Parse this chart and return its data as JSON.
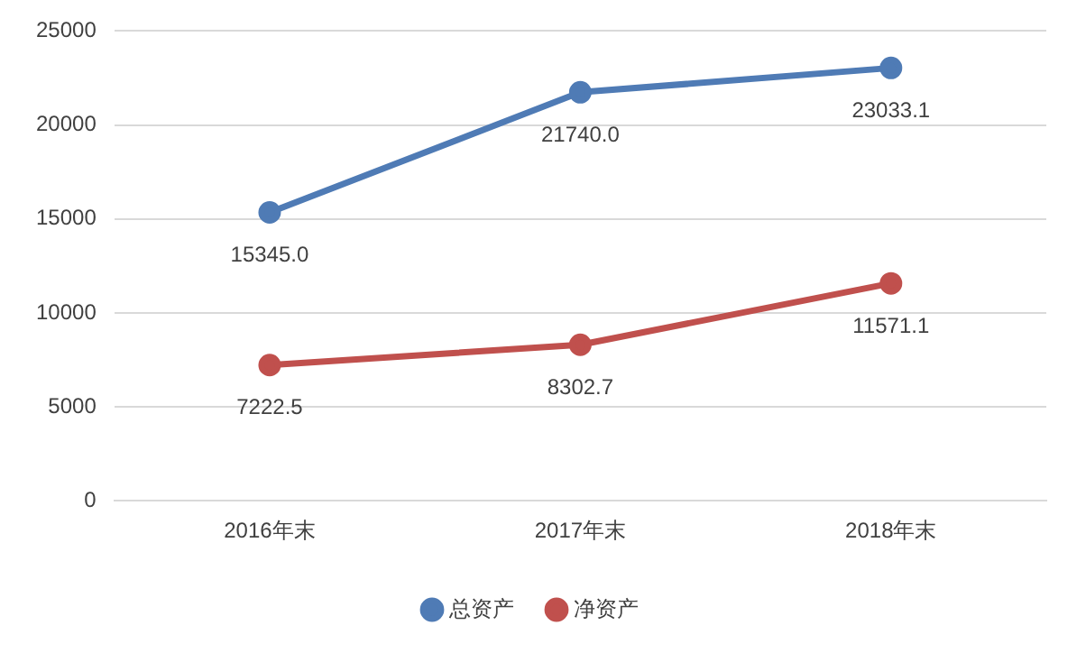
{
  "chart_data": {
    "type": "line",
    "categories": [
      "2016年末",
      "2017年末",
      "2018年末"
    ],
    "series": [
      {
        "name": "总资产",
        "color": "#4f7bb5",
        "values": [
          15345.0,
          21740.0,
          23033.1
        ],
        "value_labels": [
          "15345.0",
          "21740.0",
          "23033.1"
        ]
      },
      {
        "name": "净资产",
        "color": "#c0504d",
        "values": [
          7222.5,
          8302.7,
          11571.1
        ],
        "value_labels": [
          "7222.5",
          "8302.7",
          "11571.1"
        ]
      }
    ],
    "ylim": [
      0,
      25000
    ],
    "yticks": [
      0,
      5000,
      10000,
      15000,
      20000,
      25000
    ],
    "grid": "y",
    "legend": "bottom",
    "marker": "circle",
    "line_style": "solid"
  }
}
